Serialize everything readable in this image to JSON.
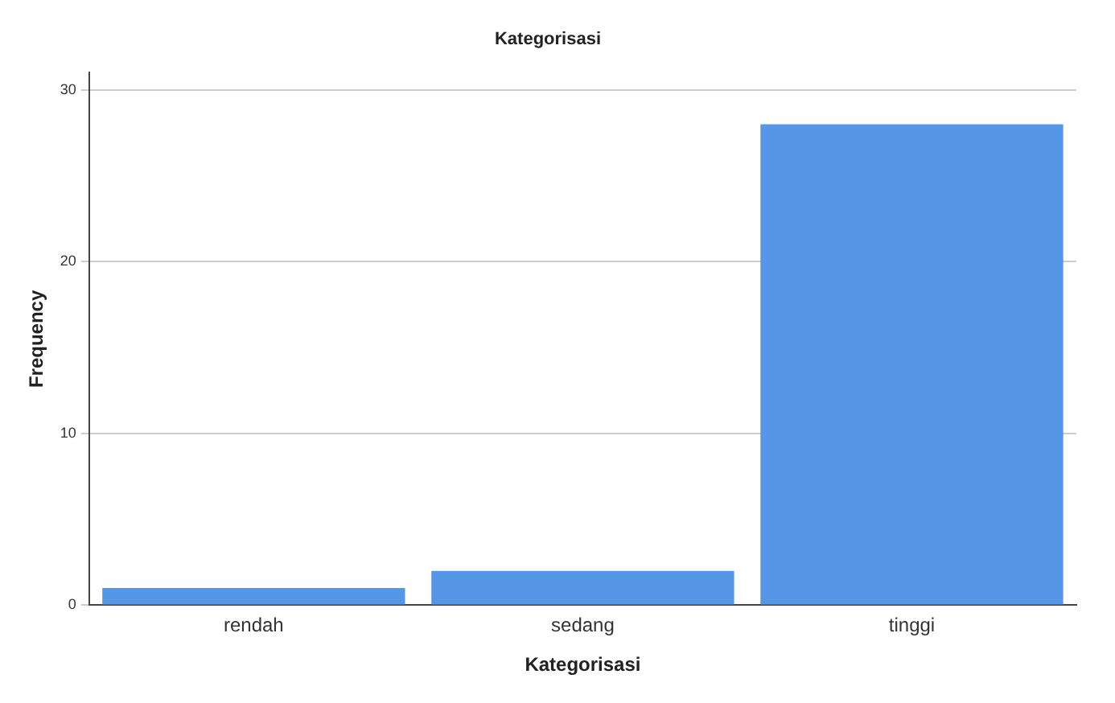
{
  "chart_data": {
    "type": "bar",
    "title": "Kategorisasi",
    "xlabel": "Kategorisasi",
    "ylabel": "Frequency",
    "categories": [
      "rendah",
      "sedang",
      "tinggi"
    ],
    "values": [
      1,
      2,
      28
    ],
    "color": "#5596e6",
    "ylim": [
      0,
      31
    ],
    "yticks": [
      0,
      10,
      20,
      30
    ],
    "grid": "y",
    "legend": false
  }
}
